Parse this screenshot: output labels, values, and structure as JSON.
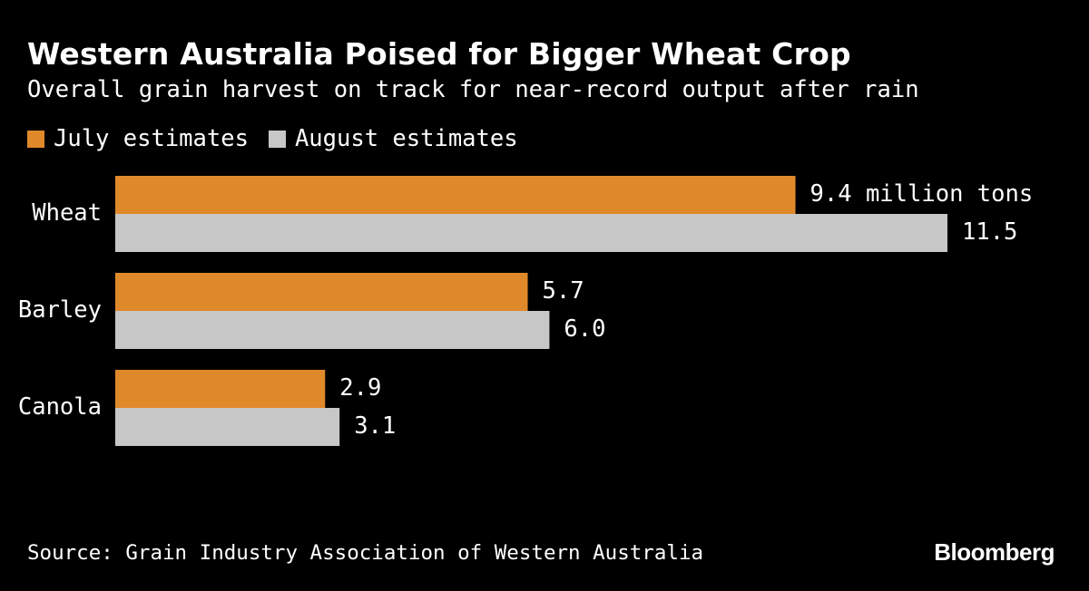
{
  "colors": {
    "background": "#000000",
    "text": "#ffffff",
    "july": "#e0892a",
    "august": "#c7c7c7"
  },
  "chart_data": {
    "type": "bar",
    "orientation": "horizontal",
    "title": "Western Australia Poised for Bigger Wheat Crop",
    "subtitle": "Overall grain harvest on track for near-record output after rain",
    "categories": [
      "Wheat",
      "Barley",
      "Canola"
    ],
    "series": [
      {
        "name": "July estimates",
        "values": [
          9.4,
          5.7,
          2.9
        ],
        "labels": [
          "9.4 million tons",
          "5.7",
          "2.9"
        ]
      },
      {
        "name": "August estimates",
        "values": [
          11.5,
          6.0,
          3.1
        ],
        "labels": [
          "11.5",
          "6.0",
          "3.1"
        ]
      }
    ],
    "unit": "million tons",
    "xlim": [
      0,
      11.5
    ],
    "grid": false,
    "legend": "top-left",
    "source": "Source: Grain Industry Association of Western Australia"
  },
  "brand": "Bloomberg"
}
